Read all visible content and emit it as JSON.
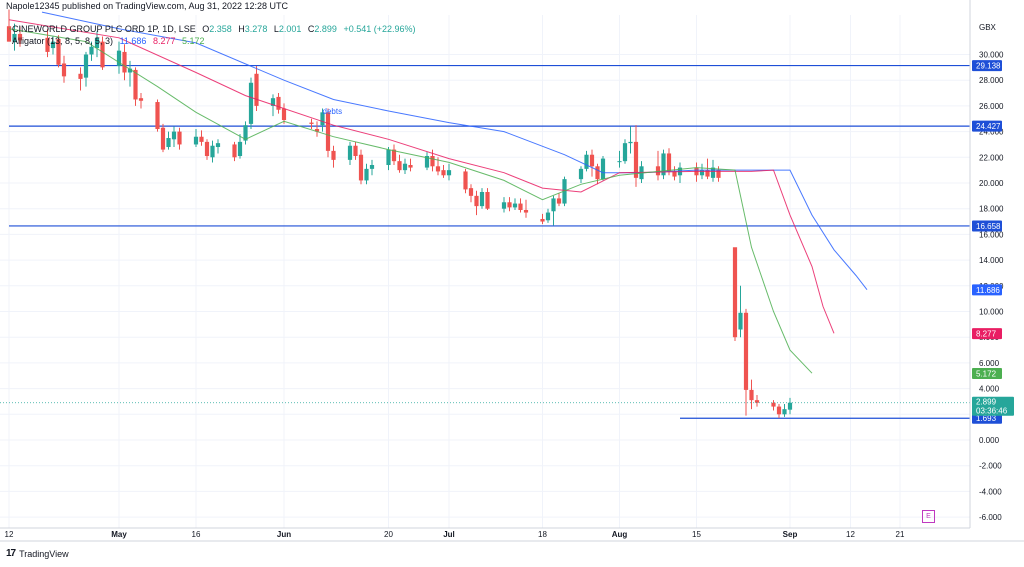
{
  "header": {
    "published": "Napole12345 published on TradingView.com, Aug 31, 2022 12:28 UTC",
    "symbol": "CINEWORLD GROUP PLC ORD 1P, 1D, LSE",
    "ohlc": {
      "o_label": "O",
      "o": "2.358",
      "h_label": "H",
      "h": "3.278",
      "l_label": "L",
      "l": "2.001",
      "c_label": "C",
      "c": "2.899",
      "chg": "+0.541 (+22.96%)"
    },
    "indicator": "Alligator (13, 8, 5, 8, 5, 3)",
    "indicator_values": [
      "11.686",
      "8.277",
      "5.172"
    ]
  },
  "currency": "GBX",
  "footer": {
    "brand": "TradingView",
    "logo": "17"
  },
  "events_badge": "E",
  "colors": {
    "up": "#26a69a",
    "down": "#ef5350",
    "jaw": "#2962ff",
    "teeth": "#e91e63",
    "lips": "#4caf50",
    "hline": "#1e4fd7",
    "grid": "#f0f3fa"
  },
  "chart_data": {
    "type": "candlestick",
    "title": "CINEWORLD GROUP PLC ORD 1P, 1D, LSE",
    "y_axis": {
      "unit": "GBX",
      "ylim": [
        -6.8,
        32.0
      ],
      "ticks": [
        30,
        28,
        26,
        24,
        22,
        20,
        18,
        16,
        14,
        12,
        10,
        8,
        6,
        4,
        2,
        0,
        -2,
        -4,
        -6
      ],
      "tick_labels": [
        "30.000",
        "28.000",
        "26.000",
        "24.000",
        "22.000",
        "20.000",
        "18.000",
        "16.000",
        "14.000",
        "12.000",
        "10.000",
        "8.000",
        "6.000",
        "4.000",
        "2.000",
        "0.000",
        "-2.000",
        "-4.000",
        "-6.000"
      ]
    },
    "x_axis": {
      "start_date": "2022-04-12",
      "end_date": "2022-09-24",
      "ticks": [
        {
          "date": "2022-04-12",
          "label": "12"
        },
        {
          "date": "2022-05-02",
          "label": "May"
        },
        {
          "date": "2022-05-16",
          "label": "16"
        },
        {
          "date": "2022-06-01",
          "label": "Jun"
        },
        {
          "date": "2022-06-20",
          "label": "20"
        },
        {
          "date": "2022-07-01",
          "label": "Jul"
        },
        {
          "date": "2022-07-18",
          "label": "18"
        },
        {
          "date": "2022-08-01",
          "label": "Aug"
        },
        {
          "date": "2022-08-15",
          "label": "15"
        },
        {
          "date": "2022-09-01",
          "label": "Sep"
        },
        {
          "date": "2022-09-12",
          "label": "12"
        },
        {
          "date": "2022-09-21",
          "label": "21"
        }
      ]
    },
    "candles": [
      {
        "d": "2022-04-12",
        "o": 32.2,
        "h": 33.5,
        "l": 31.0,
        "c": 31.0
      },
      {
        "d": "2022-04-13",
        "o": 31.0,
        "h": 32.4,
        "l": 30.3,
        "c": 31.6
      },
      {
        "d": "2022-04-14",
        "o": 31.6,
        "h": 32.2,
        "l": 30.6,
        "c": 31.1
      },
      {
        "d": "2022-04-19",
        "o": 31.3,
        "h": 32.0,
        "l": 29.8,
        "c": 30.2
      },
      {
        "d": "2022-04-20",
        "o": 30.5,
        "h": 31.4,
        "l": 30.0,
        "c": 31.0
      },
      {
        "d": "2022-04-21",
        "o": 31.2,
        "h": 31.5,
        "l": 29.0,
        "c": 29.2
      },
      {
        "d": "2022-04-22",
        "o": 29.3,
        "h": 29.9,
        "l": 27.8,
        "c": 28.3
      },
      {
        "d": "2022-04-25",
        "o": 28.5,
        "h": 29.0,
        "l": 27.2,
        "c": 28.1
      },
      {
        "d": "2022-04-26",
        "o": 28.2,
        "h": 30.2,
        "l": 27.5,
        "c": 30.0
      },
      {
        "d": "2022-04-27",
        "o": 30.0,
        "h": 31.0,
        "l": 29.5,
        "c": 30.6
      },
      {
        "d": "2022-04-28",
        "o": 30.5,
        "h": 31.8,
        "l": 29.8,
        "c": 31.3
      },
      {
        "d": "2022-04-29",
        "o": 31.0,
        "h": 31.4,
        "l": 28.8,
        "c": 29.0
      },
      {
        "d": "2022-05-02",
        "o": 29.1,
        "h": 31.0,
        "l": 28.5,
        "c": 30.3
      },
      {
        "d": "2022-05-03",
        "o": 30.2,
        "h": 30.8,
        "l": 28.0,
        "c": 28.6
      },
      {
        "d": "2022-05-04",
        "o": 28.6,
        "h": 29.5,
        "l": 27.5,
        "c": 28.9
      },
      {
        "d": "2022-05-05",
        "o": 28.8,
        "h": 29.0,
        "l": 26.0,
        "c": 26.5
      },
      {
        "d": "2022-05-06",
        "o": 26.6,
        "h": 27.0,
        "l": 25.8,
        "c": 26.4
      },
      {
        "d": "2022-05-09",
        "o": 26.3,
        "h": 26.5,
        "l": 24.0,
        "c": 24.2
      },
      {
        "d": "2022-05-10",
        "o": 24.3,
        "h": 24.6,
        "l": 22.4,
        "c": 22.6
      },
      {
        "d": "2022-05-11",
        "o": 22.8,
        "h": 24.0,
        "l": 22.6,
        "c": 23.5
      },
      {
        "d": "2022-05-12",
        "o": 23.4,
        "h": 24.4,
        "l": 22.8,
        "c": 24.0
      },
      {
        "d": "2022-05-13",
        "o": 24.0,
        "h": 24.3,
        "l": 22.6,
        "c": 23.0
      },
      {
        "d": "2022-05-16",
        "o": 23.0,
        "h": 24.2,
        "l": 22.8,
        "c": 23.6
      },
      {
        "d": "2022-05-17",
        "o": 23.6,
        "h": 24.1,
        "l": 22.9,
        "c": 23.2
      },
      {
        "d": "2022-05-18",
        "o": 23.2,
        "h": 23.4,
        "l": 21.8,
        "c": 22.1
      },
      {
        "d": "2022-05-19",
        "o": 22.0,
        "h": 23.3,
        "l": 21.6,
        "c": 22.9
      },
      {
        "d": "2022-05-20",
        "o": 22.8,
        "h": 23.4,
        "l": 22.3,
        "c": 23.1
      },
      {
        "d": "2022-05-23",
        "o": 23.0,
        "h": 23.2,
        "l": 21.7,
        "c": 22.0
      },
      {
        "d": "2022-05-24",
        "o": 22.1,
        "h": 23.8,
        "l": 21.9,
        "c": 23.2
      },
      {
        "d": "2022-05-25",
        "o": 23.3,
        "h": 24.8,
        "l": 23.0,
        "c": 24.5
      },
      {
        "d": "2022-05-26",
        "o": 24.6,
        "h": 28.2,
        "l": 24.2,
        "c": 27.8
      },
      {
        "d": "2022-05-27",
        "o": 28.5,
        "h": 29.1,
        "l": 25.6,
        "c": 26.0
      },
      {
        "d": "2022-05-30",
        "o": 26.0,
        "h": 26.9,
        "l": 25.2,
        "c": 26.6
      },
      {
        "d": "2022-05-31",
        "o": 26.7,
        "h": 27.0,
        "l": 25.4,
        "c": 25.7
      },
      {
        "d": "2022-06-01",
        "o": 25.8,
        "h": 26.2,
        "l": 24.6,
        "c": 24.9
      },
      {
        "d": "2022-06-06",
        "o": 24.7,
        "h": 25.0,
        "l": 24.2,
        "c": 24.6
      },
      {
        "d": "2022-06-07",
        "o": 24.2,
        "h": 24.8,
        "l": 23.6,
        "c": 24.0
      },
      {
        "d": "2022-06-08",
        "o": 24.5,
        "h": 25.8,
        "l": 24.0,
        "c": 25.5
      },
      {
        "d": "2022-06-09",
        "o": 25.5,
        "h": 25.8,
        "l": 22.0,
        "c": 22.5
      },
      {
        "d": "2022-06-10",
        "o": 22.5,
        "h": 22.9,
        "l": 21.2,
        "c": 21.8
      },
      {
        "d": "2022-06-13",
        "o": 21.8,
        "h": 23.2,
        "l": 21.4,
        "c": 22.9
      },
      {
        "d": "2022-06-14",
        "o": 22.9,
        "h": 23.2,
        "l": 21.8,
        "c": 22.1
      },
      {
        "d": "2022-06-15",
        "o": 22.2,
        "h": 22.6,
        "l": 19.9,
        "c": 20.2
      },
      {
        "d": "2022-06-16",
        "o": 20.2,
        "h": 21.5,
        "l": 19.9,
        "c": 21.1
      },
      {
        "d": "2022-06-17",
        "o": 21.1,
        "h": 21.8,
        "l": 20.6,
        "c": 21.4
      },
      {
        "d": "2022-06-20",
        "o": 21.4,
        "h": 22.8,
        "l": 21.0,
        "c": 22.6
      },
      {
        "d": "2022-06-21",
        "o": 22.6,
        "h": 23.0,
        "l": 21.4,
        "c": 21.7
      },
      {
        "d": "2022-06-22",
        "o": 21.7,
        "h": 22.2,
        "l": 20.8,
        "c": 21.0
      },
      {
        "d": "2022-06-23",
        "o": 21.0,
        "h": 21.9,
        "l": 20.7,
        "c": 21.5
      },
      {
        "d": "2022-06-24",
        "o": 21.4,
        "h": 21.9,
        "l": 20.9,
        "c": 21.2
      },
      {
        "d": "2022-06-27",
        "o": 21.2,
        "h": 22.4,
        "l": 21.0,
        "c": 22.1
      },
      {
        "d": "2022-06-28",
        "o": 22.1,
        "h": 22.6,
        "l": 20.9,
        "c": 21.3
      },
      {
        "d": "2022-06-29",
        "o": 21.3,
        "h": 22.0,
        "l": 20.6,
        "c": 20.9
      },
      {
        "d": "2022-06-30",
        "o": 21.0,
        "h": 21.4,
        "l": 20.4,
        "c": 20.6
      },
      {
        "d": "2022-07-01",
        "o": 20.6,
        "h": 21.5,
        "l": 20.2,
        "c": 21.0
      },
      {
        "d": "2022-07-04",
        "o": 20.9,
        "h": 21.1,
        "l": 19.2,
        "c": 19.5
      },
      {
        "d": "2022-07-05",
        "o": 19.6,
        "h": 19.9,
        "l": 18.5,
        "c": 19.0
      },
      {
        "d": "2022-07-06",
        "o": 19.0,
        "h": 19.4,
        "l": 17.5,
        "c": 18.2
      },
      {
        "d": "2022-07-07",
        "o": 18.2,
        "h": 19.6,
        "l": 18.0,
        "c": 19.3
      },
      {
        "d": "2022-07-08",
        "o": 19.3,
        "h": 19.6,
        "l": 17.9,
        "c": 18.0
      },
      {
        "d": "2022-07-11",
        "o": 18.0,
        "h": 18.9,
        "l": 17.7,
        "c": 18.5
      },
      {
        "d": "2022-07-12",
        "o": 18.5,
        "h": 18.9,
        "l": 17.8,
        "c": 18.1
      },
      {
        "d": "2022-07-13",
        "o": 18.1,
        "h": 18.8,
        "l": 17.9,
        "c": 18.4
      },
      {
        "d": "2022-07-14",
        "o": 18.4,
        "h": 18.8,
        "l": 17.7,
        "c": 17.9
      },
      {
        "d": "2022-07-15",
        "o": 17.9,
        "h": 18.7,
        "l": 17.3,
        "c": 17.7
      },
      {
        "d": "2022-07-18",
        "o": 17.2,
        "h": 17.6,
        "l": 16.8,
        "c": 17.0
      },
      {
        "d": "2022-07-19",
        "o": 17.1,
        "h": 18.0,
        "l": 16.9,
        "c": 17.7
      },
      {
        "d": "2022-07-20",
        "o": 17.8,
        "h": 19.0,
        "l": 16.7,
        "c": 18.8
      },
      {
        "d": "2022-07-21",
        "o": 18.8,
        "h": 19.2,
        "l": 18.2,
        "c": 18.4
      },
      {
        "d": "2022-07-22",
        "o": 18.4,
        "h": 20.5,
        "l": 18.2,
        "c": 20.3
      },
      {
        "d": "2022-07-25",
        "o": 20.3,
        "h": 21.3,
        "l": 20.0,
        "c": 21.1
      },
      {
        "d": "2022-07-26",
        "o": 21.1,
        "h": 22.5,
        "l": 20.9,
        "c": 22.2
      },
      {
        "d": "2022-07-27",
        "o": 22.2,
        "h": 22.6,
        "l": 20.5,
        "c": 21.3
      },
      {
        "d": "2022-07-28",
        "o": 21.3,
        "h": 21.5,
        "l": 19.9,
        "c": 20.3
      },
      {
        "d": "2022-07-29",
        "o": 20.3,
        "h": 22.1,
        "l": 20.2,
        "c": 21.9
      },
      {
        "d": "2022-08-01",
        "o": 21.7,
        "h": 22.5,
        "l": 21.2,
        "c": 21.7
      },
      {
        "d": "2022-08-02",
        "o": 21.7,
        "h": 23.4,
        "l": 21.5,
        "c": 23.1
      },
      {
        "d": "2022-08-03",
        "o": 23.1,
        "h": 24.4,
        "l": 22.3,
        "c": 23.2
      },
      {
        "d": "2022-08-04",
        "o": 23.2,
        "h": 24.5,
        "l": 19.7,
        "c": 20.4
      },
      {
        "d": "2022-08-05",
        "o": 20.3,
        "h": 21.7,
        "l": 20.0,
        "c": 21.3
      },
      {
        "d": "2022-08-08",
        "o": 21.3,
        "h": 22.5,
        "l": 20.2,
        "c": 20.6
      },
      {
        "d": "2022-08-09",
        "o": 20.6,
        "h": 22.6,
        "l": 20.3,
        "c": 22.3
      },
      {
        "d": "2022-08-10",
        "o": 22.3,
        "h": 22.7,
        "l": 20.6,
        "c": 20.9
      },
      {
        "d": "2022-08-11",
        "o": 20.9,
        "h": 21.3,
        "l": 20.2,
        "c": 20.5
      },
      {
        "d": "2022-08-12",
        "o": 20.6,
        "h": 21.6,
        "l": 20.0,
        "c": 21.2
      },
      {
        "d": "2022-08-15",
        "o": 21.2,
        "h": 21.6,
        "l": 20.1,
        "c": 20.6
      },
      {
        "d": "2022-08-16",
        "o": 20.6,
        "h": 21.5,
        "l": 20.3,
        "c": 21.0
      },
      {
        "d": "2022-08-17",
        "o": 21.0,
        "h": 21.9,
        "l": 20.3,
        "c": 20.5
      },
      {
        "d": "2022-08-18",
        "o": 20.4,
        "h": 21.8,
        "l": 20.1,
        "c": 21.2
      },
      {
        "d": "2022-08-19",
        "o": 21.0,
        "h": 21.3,
        "l": 20.1,
        "c": 20.4
      },
      {
        "d": "2022-08-22",
        "o": 15.0,
        "h": 14.9,
        "l": 7.7,
        "c": 8.0
      },
      {
        "d": "2022-08-23",
        "o": 8.6,
        "h": 12.0,
        "l": 8.0,
        "c": 9.9
      },
      {
        "d": "2022-08-24",
        "o": 9.9,
        "h": 10.2,
        "l": 1.9,
        "c": 3.9
      },
      {
        "d": "2022-08-25",
        "o": 3.9,
        "h": 4.7,
        "l": 2.4,
        "c": 3.1
      },
      {
        "d": "2022-08-26",
        "o": 3.1,
        "h": 3.5,
        "l": 2.6,
        "c": 2.9
      },
      {
        "d": "2022-08-29",
        "o": 2.9,
        "h": 3.1,
        "l": 2.3,
        "c": 2.6
      },
      {
        "d": "2022-08-30",
        "o": 2.6,
        "h": 2.8,
        "l": 1.7,
        "c": 2.0
      },
      {
        "d": "2022-08-31",
        "o": 2.0,
        "h": 2.8,
        "l": 1.8,
        "c": 2.4
      },
      {
        "d": "2022-09-01",
        "o": 2.36,
        "h": 3.28,
        "l": 2.0,
        "c": 2.9
      }
    ],
    "series": [
      {
        "name": "Jaw",
        "color": "#2962ff",
        "points": [
          [
            "2022-04-18",
            33.3
          ],
          [
            "2022-05-02",
            32.0
          ],
          [
            "2022-05-16",
            30.9
          ],
          [
            "2022-06-01",
            28.0
          ],
          [
            "2022-06-10",
            26.5
          ],
          [
            "2022-06-20",
            25.6
          ],
          [
            "2022-07-01",
            24.7
          ],
          [
            "2022-07-11",
            24.0
          ],
          [
            "2022-07-22",
            22.2
          ],
          [
            "2022-07-29",
            20.8
          ],
          [
            "2022-08-05",
            20.8
          ],
          [
            "2022-08-15",
            21.0
          ],
          [
            "2022-08-29",
            21.0
          ],
          [
            "2022-09-01",
            21.0
          ],
          [
            "2022-09-05",
            17.5
          ],
          [
            "2022-09-09",
            14.8
          ],
          [
            "2022-09-13",
            12.8
          ],
          [
            "2022-09-15",
            11.7
          ]
        ]
      },
      {
        "name": "Teeth",
        "color": "#e91e63",
        "points": [
          [
            "2022-04-12",
            32.7
          ],
          [
            "2022-05-02",
            31.3
          ],
          [
            "2022-05-16",
            28.6
          ],
          [
            "2022-05-25",
            26.8
          ],
          [
            "2022-06-10",
            24.5
          ],
          [
            "2022-06-20",
            23.4
          ],
          [
            "2022-07-01",
            21.9
          ],
          [
            "2022-07-11",
            20.8
          ],
          [
            "2022-07-18",
            19.6
          ],
          [
            "2022-07-25",
            19.3
          ],
          [
            "2022-08-01",
            20.8
          ],
          [
            "2022-08-15",
            20.9
          ],
          [
            "2022-08-25",
            20.9
          ],
          [
            "2022-08-29",
            21.0
          ],
          [
            "2022-09-01",
            17.5
          ],
          [
            "2022-09-05",
            13.5
          ],
          [
            "2022-09-07",
            10.4
          ],
          [
            "2022-09-09",
            8.3
          ]
        ]
      },
      {
        "name": "Lips",
        "color": "#4caf50",
        "points": [
          [
            "2022-04-12",
            32.0
          ],
          [
            "2022-04-26",
            31.0
          ],
          [
            "2022-05-09",
            27.5
          ],
          [
            "2022-05-16",
            25.5
          ],
          [
            "2022-05-25",
            23.4
          ],
          [
            "2022-06-01",
            24.8
          ],
          [
            "2022-06-10",
            23.6
          ],
          [
            "2022-06-20",
            22.6
          ],
          [
            "2022-07-01",
            21.6
          ],
          [
            "2022-07-11",
            20.2
          ],
          [
            "2022-07-18",
            18.7
          ],
          [
            "2022-07-25",
            19.9
          ],
          [
            "2022-08-01",
            20.6
          ],
          [
            "2022-08-15",
            21.2
          ],
          [
            "2022-08-22",
            21.0
          ],
          [
            "2022-08-25",
            15.0
          ],
          [
            "2022-08-29",
            10.0
          ],
          [
            "2022-09-01",
            7.0
          ],
          [
            "2022-09-05",
            5.2
          ]
        ]
      }
    ],
    "hlines": [
      {
        "value": 29.138,
        "label": "29.138",
        "from": "2022-04-12",
        "to": "2022-09-29"
      },
      {
        "value": 24.427,
        "label": "24.427",
        "from": "2022-04-12",
        "to": "2022-09-29"
      },
      {
        "value": 16.658,
        "label": "16.658",
        "from": "2022-04-12",
        "to": "2022-09-29"
      },
      {
        "value": 1.693,
        "label": "1.693",
        "from": "2022-08-12",
        "to": "2022-09-29"
      }
    ],
    "last_price": {
      "value": 2.899,
      "label": "2.899",
      "countdown": "03:36:46"
    },
    "value_tags": [
      {
        "value": 11.686,
        "label": "11.686",
        "color": "#2962ff"
      },
      {
        "value": 8.277,
        "label": "8.277",
        "color": "#e91e63"
      },
      {
        "value": 5.172,
        "label": "5.172",
        "color": "#4caf50"
      }
    ],
    "annotations": [
      {
        "text": "debts",
        "date": "2022-06-08",
        "value": 25.6
      }
    ],
    "grid": true
  }
}
